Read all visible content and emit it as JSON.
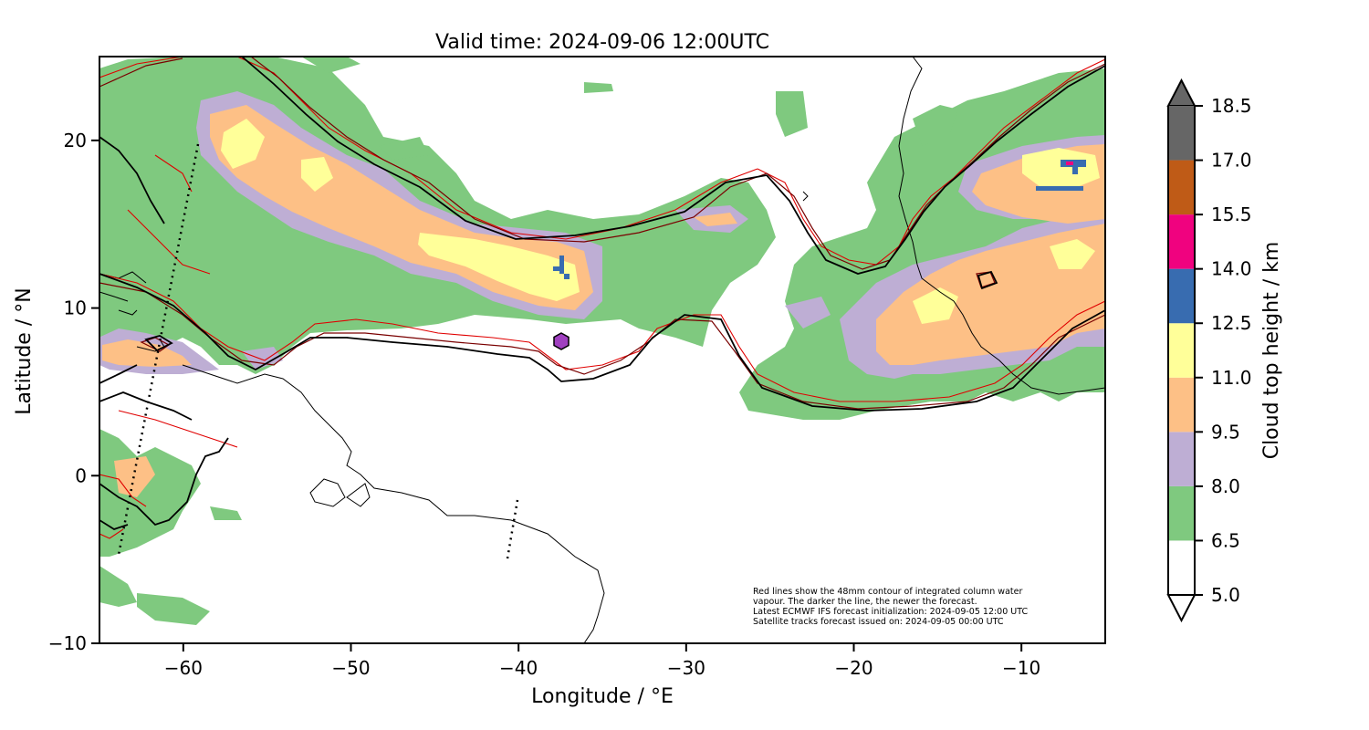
{
  "title": "Valid time: 2024-09-06 12:00UTC",
  "xlabel": "Longitude / °E",
  "ylabel": "Latitude / °N",
  "x_ticks": [
    -60,
    -50,
    -40,
    -30,
    -20,
    -10
  ],
  "y_ticks": [
    20,
    10,
    0,
    -10
  ],
  "xlim": [
    -65,
    -5
  ],
  "ylim": [
    -10,
    25
  ],
  "colorbar": {
    "label": "Cloud top height / km",
    "levels": [
      "5.0",
      "6.5",
      "8.0",
      "9.5",
      "11.0",
      "12.5",
      "14.0",
      "15.5",
      "17.0",
      "18.5"
    ],
    "colors": [
      "#ffffff",
      "#7fc97f",
      "#beaed4",
      "#fdc086",
      "#ffff99",
      "#386cb0",
      "#f0027f",
      "#bf5b17"
    ],
    "over_color": "#666666",
    "under_color": "#ffffff"
  },
  "note_lines": [
    "Red lines show the 48mm contour of integrated column water",
    "vapour. The darker the line, the newer the forecast.",
    "Latest ECMWF IFS forecast initialization: 2024-09-05 12:00 UTC",
    "Satellite tracks forecast issued on: 2024-09-05 00:00 UTC"
  ],
  "colors": {
    "coast": "#000000",
    "contour_new": "#000000",
    "contour_mid": "#7a0000",
    "contour_old": "#e00000",
    "track": "#000000",
    "marker": "#a040c0"
  }
}
